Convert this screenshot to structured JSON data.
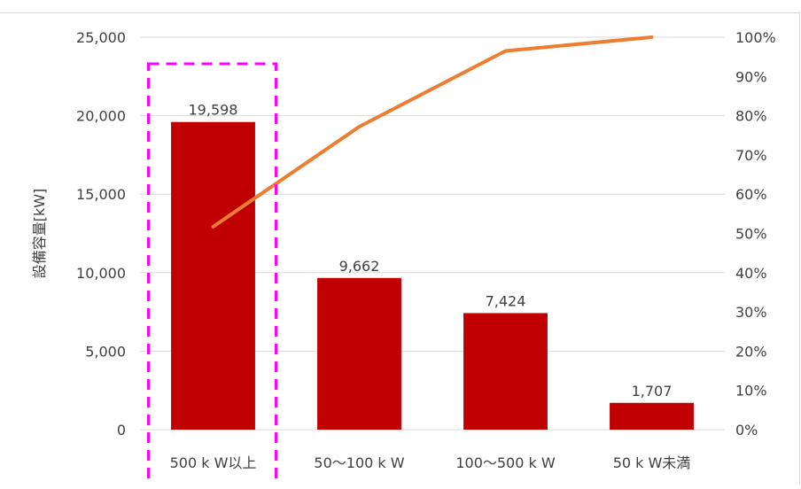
{
  "chart_data": {
    "type": "bar",
    "categories": [
      "500 k W以上",
      "50〜100 k W",
      "100〜500 k W",
      "50 k W未満"
    ],
    "series": [
      {
        "type": "bar",
        "values": [
          19598,
          9662,
          7424,
          1707
        ],
        "color": "#c00000"
      },
      {
        "type": "line",
        "axis": "secondary",
        "values": [
          51.7,
          77.2,
          96.5,
          100
        ],
        "color": "#ed7d31"
      }
    ],
    "data_labels": [
      "19,598",
      "9,662",
      "7,424",
      "1,707"
    ],
    "ylabel": "設備容量[kW]",
    "ylim": [
      0,
      25000
    ],
    "y_ticks": [
      "0",
      "5,000",
      "10,000",
      "15,000",
      "20,000",
      "25,000"
    ],
    "y2lim": [
      0,
      100
    ],
    "y2_ticks": [
      "0%",
      "10%",
      "20%",
      "30%",
      "40%",
      "50%",
      "60%",
      "70%",
      "80%",
      "90%",
      "100%"
    ],
    "grid": true,
    "highlight": {
      "category_index": 0,
      "style": "dashed",
      "color": "#ff00ff"
    }
  }
}
